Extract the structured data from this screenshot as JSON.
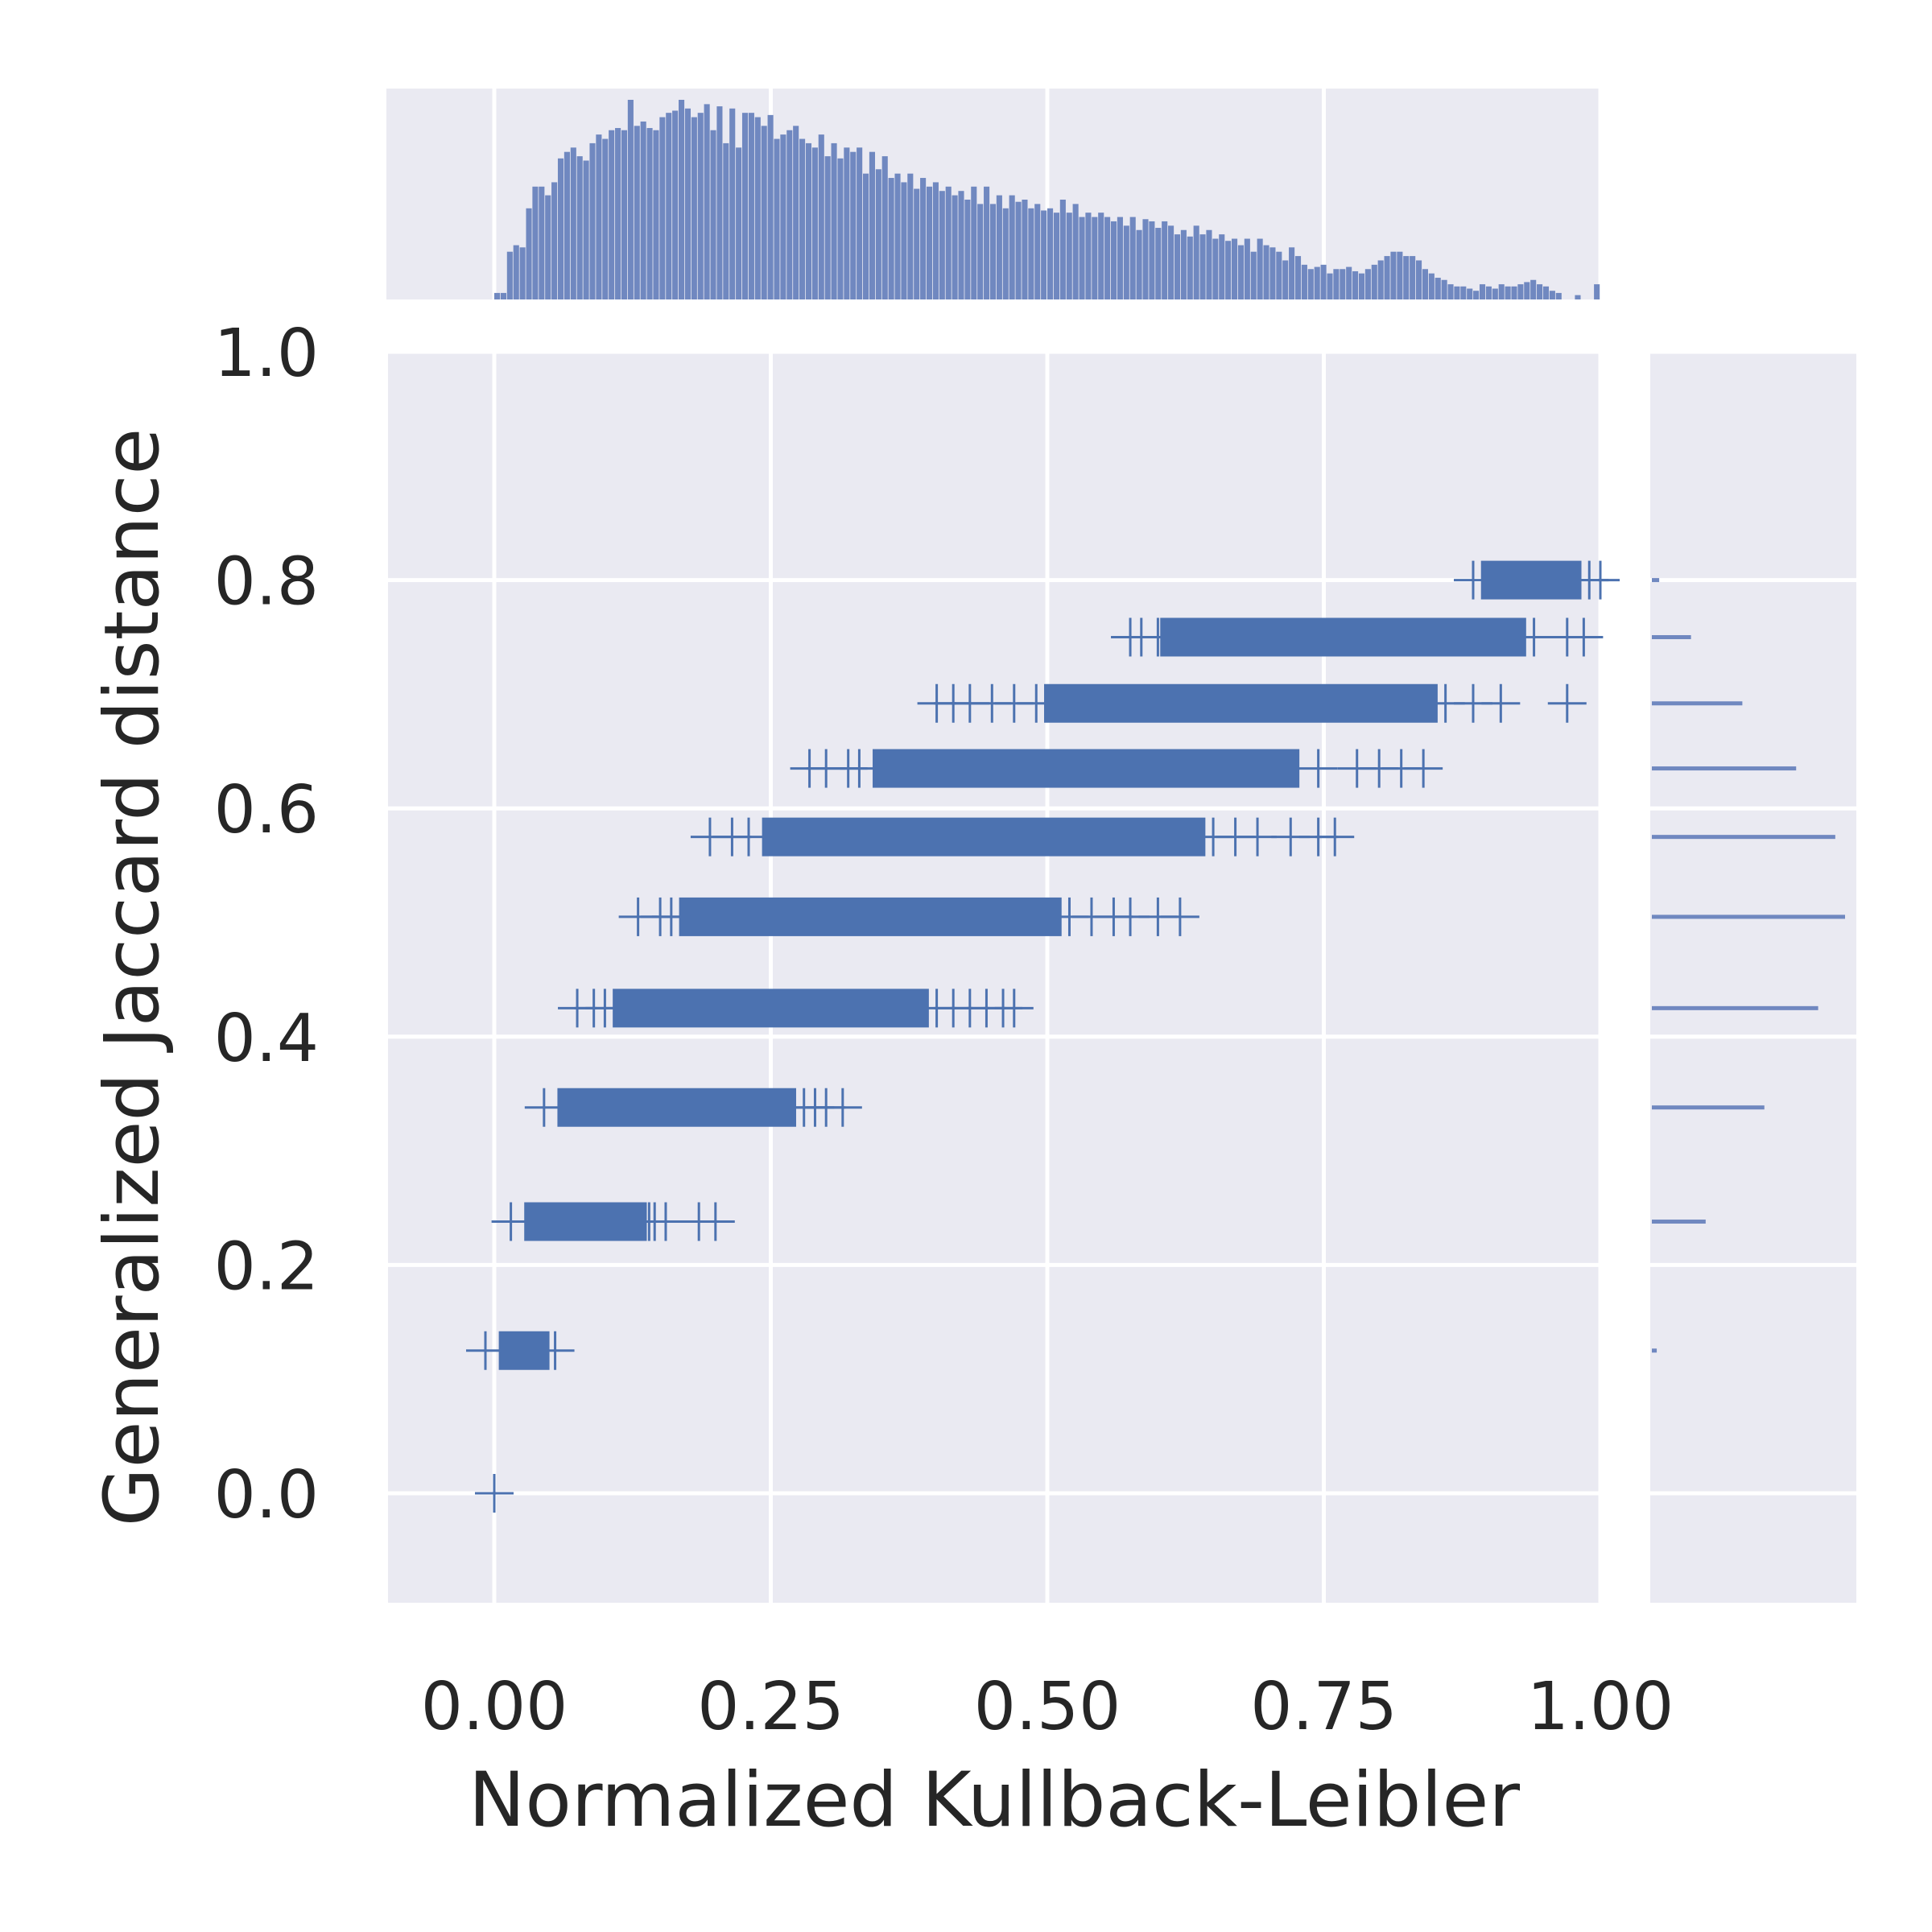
{
  "chart_data": {
    "type": "scatter",
    "title": "",
    "xlabel": "Normalized Kullback-Leibler",
    "ylabel": "Generalized Jaccard distance",
    "xlim": [
      -0.095,
      1.0
    ],
    "ylim": [
      -0.095,
      1.0
    ],
    "xticks": [
      {
        "value": 0.0,
        "label": "0.00"
      },
      {
        "value": 0.25,
        "label": "0.25"
      },
      {
        "value": 0.5,
        "label": "0.50"
      },
      {
        "value": 0.75,
        "label": "0.75"
      },
      {
        "value": 1.0,
        "label": "1.00"
      }
    ],
    "yticks": [
      {
        "value": 0.0,
        "label": "0.0"
      },
      {
        "value": 0.2,
        "label": "0.2"
      },
      {
        "value": 0.4,
        "label": "0.4"
      },
      {
        "value": 0.6,
        "label": "0.6"
      },
      {
        "value": 0.8,
        "label": "0.8"
      },
      {
        "value": 1.0,
        "label": "1.0"
      }
    ],
    "grid": true,
    "marker": "+",
    "colors": {
      "marker": "#4c72b0",
      "bar": "#7088c0",
      "panel": "#eaeaf2",
      "grid": "#ffffff"
    },
    "bands": [
      {
        "y": 0.0,
        "dense": null,
        "points": [
          0.0
        ]
      },
      {
        "y": 0.125,
        "dense": [
          0.007,
          0.047
        ],
        "points": [
          -0.008,
          0.055
        ]
      },
      {
        "y": 0.238,
        "dense": [
          0.03,
          0.135
        ],
        "points": [
          0.015,
          0.14,
          0.145,
          0.155,
          0.185,
          0.2
        ]
      },
      {
        "y": 0.338,
        "dense": [
          0.06,
          0.27
        ],
        "points": [
          0.045,
          0.28,
          0.29,
          0.3,
          0.315
        ]
      },
      {
        "y": 0.425,
        "dense": [
          0.11,
          0.39
        ],
        "points": [
          0.075,
          0.09,
          0.1,
          0.4,
          0.415,
          0.43,
          0.445,
          0.46,
          0.47
        ]
      },
      {
        "y": 0.505,
        "dense": [
          0.17,
          0.51
        ],
        "points": [
          0.13,
          0.15,
          0.16,
          0.52,
          0.54,
          0.56,
          0.575,
          0.6,
          0.62
        ]
      },
      {
        "y": 0.575,
        "dense": [
          0.245,
          0.64
        ],
        "points": [
          0.195,
          0.215,
          0.23,
          0.65,
          0.67,
          0.69,
          0.72,
          0.745,
          0.76
        ]
      },
      {
        "y": 0.635,
        "dense": [
          0.345,
          0.725
        ],
        "points": [
          0.285,
          0.3,
          0.32,
          0.33,
          0.745,
          0.78,
          0.8,
          0.82,
          0.84
        ]
      },
      {
        "y": 0.692,
        "dense": [
          0.5,
          0.85
        ],
        "points": [
          0.4,
          0.415,
          0.43,
          0.45,
          0.47,
          0.49,
          0.86,
          0.885,
          0.91,
          0.97
        ]
      },
      {
        "y": 0.75,
        "dense": [
          0.605,
          0.93
        ],
        "points": [
          0.575,
          0.585,
          0.6,
          0.94,
          0.97,
          0.985
        ]
      },
      {
        "y": 0.8,
        "dense": [
          0.895,
          0.98
        ],
        "points": [
          0.885,
          0.99,
          1.0
        ]
      }
    ],
    "x_histogram": {
      "bins": [
        0.0,
        1.0
      ],
      "counts": [
        3,
        3,
        22,
        25,
        24,
        42,
        52,
        52,
        48,
        54,
        65,
        68,
        70,
        66,
        64,
        72,
        76,
        74,
        78,
        79,
        78,
        92,
        80,
        82,
        79,
        78,
        84,
        86,
        87,
        92,
        88,
        84,
        86,
        90,
        78,
        89,
        72,
        88,
        70,
        86,
        86,
        84,
        80,
        85,
        74,
        76,
        78,
        80,
        74,
        72,
        70,
        76,
        66,
        72,
        65,
        70,
        68,
        70,
        58,
        68,
        60,
        66,
        56,
        58,
        54,
        58,
        51,
        56,
        52,
        54,
        50,
        52,
        48,
        50,
        46,
        52,
        44,
        52,
        44,
        48,
        42,
        48,
        45,
        46,
        42,
        44,
        41,
        42,
        40,
        46,
        40,
        44,
        38,
        40,
        38,
        40,
        38,
        36,
        38,
        34,
        38,
        32,
        37,
        36,
        33,
        36,
        34,
        30,
        32,
        29,
        34,
        30,
        32,
        28,
        30,
        27,
        28,
        25,
        28,
        22,
        28,
        25,
        24,
        22,
        18,
        24,
        20,
        16,
        14,
        15,
        16,
        12,
        14,
        14,
        15,
        13,
        12,
        14,
        16,
        18,
        20,
        22,
        22,
        20,
        20,
        18,
        14,
        12,
        10,
        9,
        7,
        6,
        6,
        5,
        4,
        7,
        6,
        5,
        7,
        6,
        6,
        7,
        8,
        9,
        7,
        6,
        4,
        3,
        0,
        0,
        2,
        0,
        0,
        7
      ]
    },
    "y_histogram": {
      "orientation": "horizontal",
      "y": [
        0.0,
        0.125,
        0.238,
        0.338,
        0.425,
        0.505,
        0.575,
        0.635,
        0.692,
        0.75,
        0.8
      ],
      "counts": [
        0,
        2,
        22,
        46,
        68,
        79,
        75,
        59,
        37,
        16,
        3
      ]
    }
  }
}
